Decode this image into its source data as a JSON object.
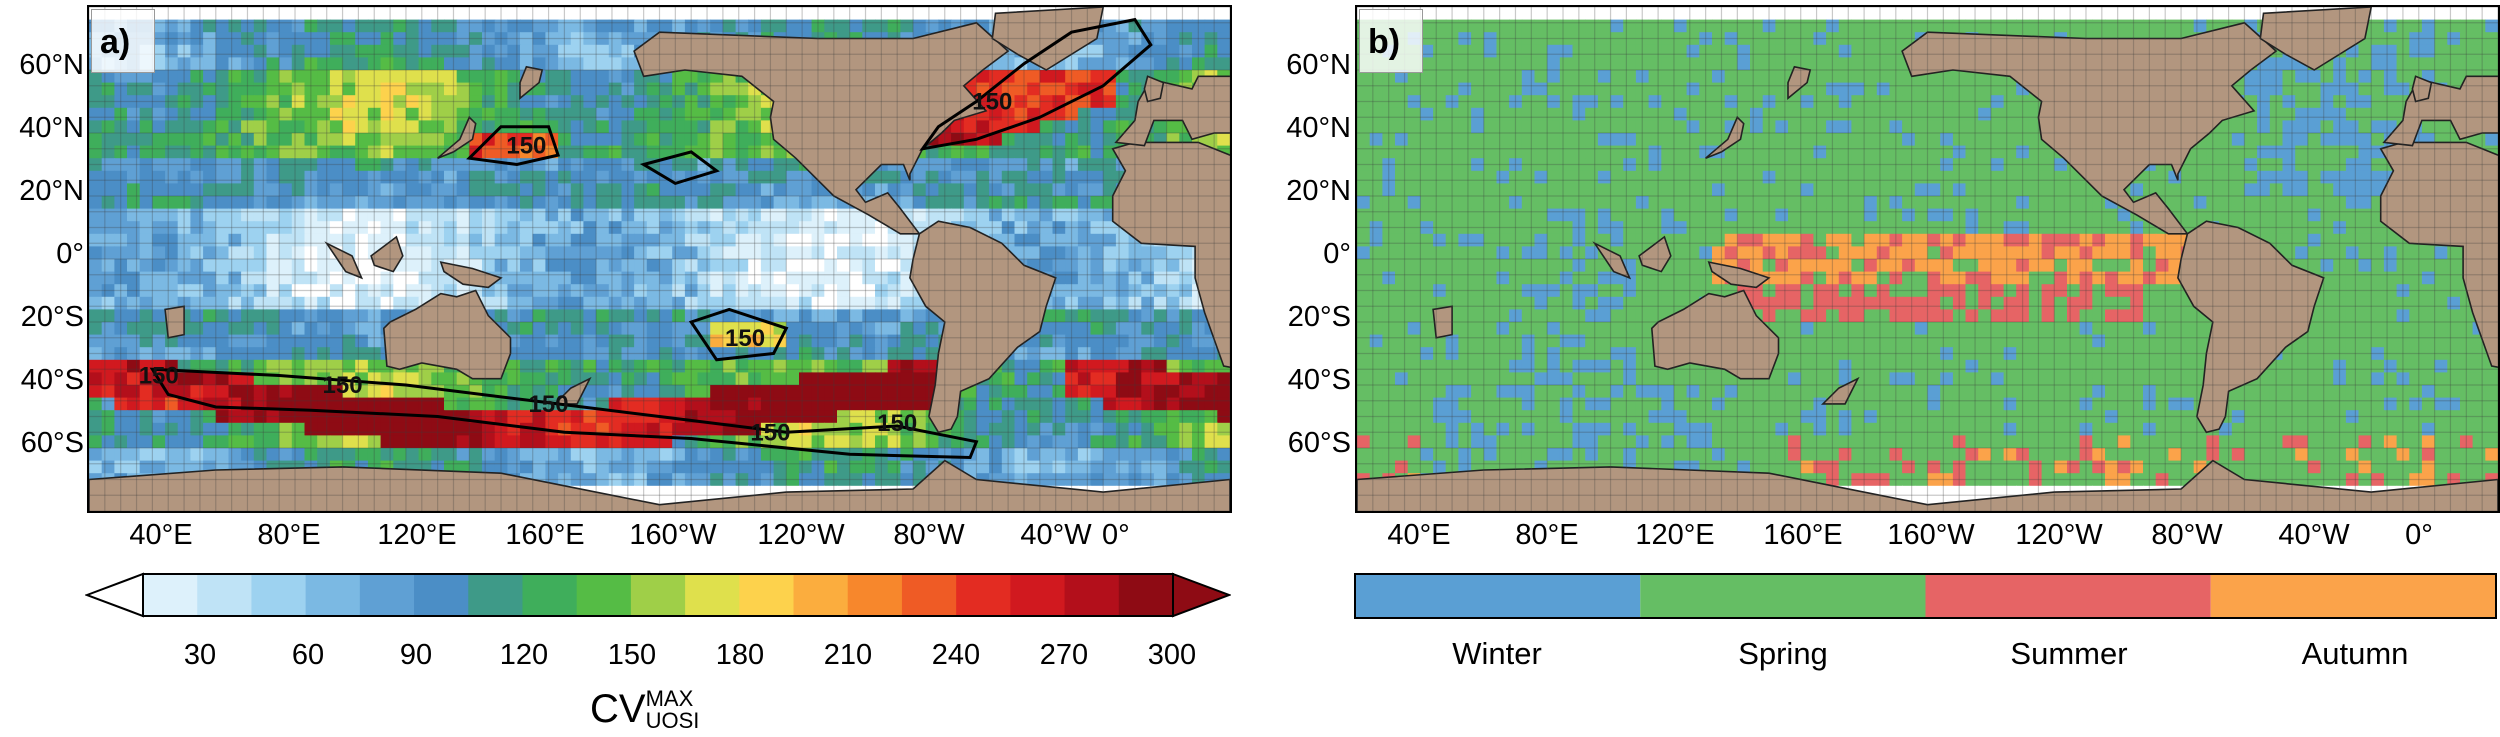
{
  "panels": {
    "a": {
      "label": "a)"
    },
    "b": {
      "label": "b)"
    }
  },
  "lat_labels": [
    "60°N",
    "40°N",
    "20°N",
    "0°",
    "20°S",
    "40°S",
    "60°S"
  ],
  "lon_labels": [
    "40°E",
    "80°E",
    "120°E",
    "160°E",
    "160°W",
    "120°W",
    "80°W",
    "40°W",
    "0°"
  ],
  "contour_label": "150",
  "colorbar_a": {
    "ticks": [
      "30",
      "60",
      "90",
      "120",
      "150",
      "180",
      "210",
      "240",
      "270",
      "300"
    ],
    "colors": [
      "#ddf1fb",
      "#bfe3f6",
      "#9dd2f0",
      "#7bb9e3",
      "#5fa0d4",
      "#4b8ec6",
      "#3e9a88",
      "#3fae5b",
      "#55bc45",
      "#9fcf48",
      "#dfe04c",
      "#fdd24c",
      "#fbad3e",
      "#f7872c",
      "#ef5b25",
      "#e32c22",
      "#d1191f",
      "#b30f1b",
      "#8e0b14"
    ],
    "title_base": "CV",
    "title_sup": "MAX",
    "title_sub": "UOSI"
  },
  "colorbar_b": {
    "seasons": [
      {
        "name": "Winter",
        "color": "#5a9fd4"
      },
      {
        "name": "Spring",
        "color": "#65be64"
      },
      {
        "name": "Summer",
        "color": "#e66465"
      },
      {
        "name": "Autumn",
        "color": "#fba34a"
      }
    ]
  },
  "colors": {
    "land": "#b2967f",
    "sea_ice_white": "#ffffff",
    "contour": "#000000"
  }
}
